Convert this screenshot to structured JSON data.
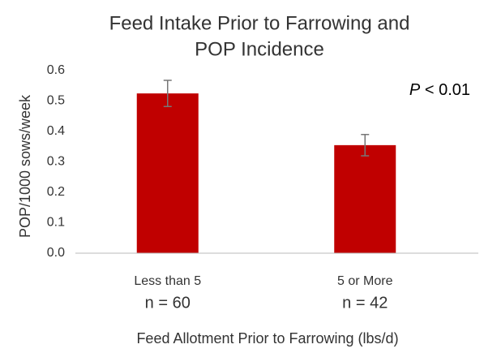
{
  "chart_data": {
    "type": "bar",
    "title": "Feed Intake Prior to Farrowing and",
    "title_line2": "POP Incidence",
    "y_label": "POP/1000 sows/week",
    "x_label": "Feed Allotment Prior to Farrowing (lbs/d)",
    "categories": [
      "Less than 5",
      "5 or More"
    ],
    "sample_sizes": [
      "n = 60",
      "n = 42"
    ],
    "values": [
      0.525,
      0.355
    ],
    "errors": [
      0.043,
      0.035
    ],
    "color": "#c00000",
    "annotation": {
      "symbol": "P",
      "text": "< 0.01"
    },
    "ylim": [
      0,
      0.6
    ],
    "yticks": [
      {
        "value": 0,
        "label": "0.0"
      },
      0.1,
      0.2,
      0.3,
      0.4,
      0.5,
      0.6
    ],
    "grid": false
  }
}
